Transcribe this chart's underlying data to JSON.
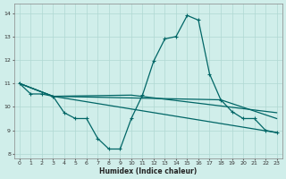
{
  "xlabel": "Humidex (Indice chaleur)",
  "bg_color": "#d0eeea",
  "grid_color": "#b0d8d2",
  "line_color": "#006666",
  "xlim": [
    -0.5,
    23.5
  ],
  "ylim": [
    7.8,
    14.4
  ],
  "xticks": [
    0,
    1,
    2,
    3,
    4,
    5,
    6,
    7,
    8,
    9,
    10,
    11,
    12,
    13,
    14,
    15,
    16,
    17,
    18,
    19,
    20,
    21,
    22,
    23
  ],
  "yticks": [
    8,
    9,
    10,
    11,
    12,
    13,
    14
  ],
  "main_x": [
    0,
    1,
    2,
    3,
    4,
    5,
    6,
    7,
    8,
    9,
    10,
    11,
    12,
    13,
    14,
    15,
    16,
    17,
    18,
    19,
    20,
    21,
    22,
    23
  ],
  "main_y": [
    11.0,
    10.55,
    10.55,
    10.45,
    9.75,
    9.5,
    9.5,
    8.65,
    8.2,
    8.2,
    9.5,
    10.5,
    11.95,
    12.9,
    13.0,
    13.9,
    13.7,
    11.4,
    10.3,
    9.8,
    9.5,
    9.5,
    9.0,
    8.9
  ],
  "line2_x": [
    0,
    3,
    23
  ],
  "line2_y": [
    11.0,
    10.45,
    8.9
  ],
  "line3_x": [
    0,
    3,
    18,
    23
  ],
  "line3_y": [
    11.0,
    10.45,
    10.3,
    9.5
  ],
  "line4_x": [
    0,
    3,
    10,
    23
  ],
  "line4_y": [
    11.0,
    10.45,
    10.5,
    9.75
  ]
}
